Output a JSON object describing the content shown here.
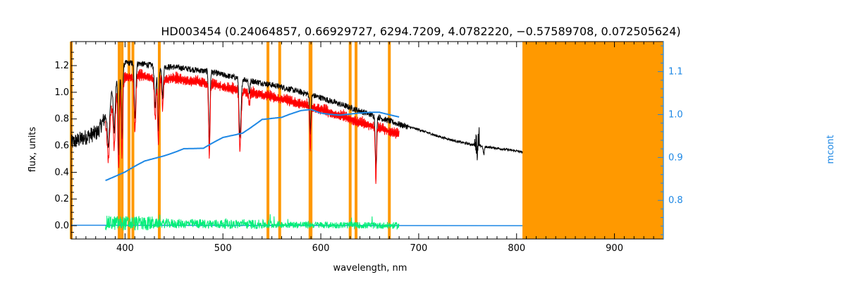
{
  "chart_data": {
    "type": "line",
    "title": "HD003454    (0.24064857, 0.66929727, 6294.7209, 4.0782220, −0.57589708, 0.072505624)",
    "xlabel": "wavelength, nm",
    "ylabel": "flux, units",
    "y2label": "mcont",
    "xlim": [
      345,
      950
    ],
    "ylim": [
      -0.1,
      1.38
    ],
    "y2lim": [
      0.71,
      1.17
    ],
    "xticks": [
      400,
      500,
      600,
      700,
      800,
      900
    ],
    "yticks": [
      0.0,
      0.2,
      0.4,
      0.6,
      0.8,
      1.0,
      1.2
    ],
    "y2ticks": [
      0.8,
      0.9,
      1.0,
      1.1
    ],
    "ytick_labels": [
      "0.0",
      "0.2",
      "0.4",
      "0.6",
      "0.8",
      "1.0",
      "1.2"
    ],
    "y2tick_labels": [
      "0.8",
      "0.9",
      "1.0",
      "1.1"
    ],
    "colors": {
      "observed": "#000000",
      "model": "#ff0000",
      "continuum": "#1e88e5",
      "residual": "#00ee77",
      "mask": "#ff9900",
      "right_axis": "#1e88e5"
    },
    "masked_lines_nm": [
      345,
      394,
      397,
      404,
      408,
      435,
      546,
      558,
      589,
      590,
      630,
      636,
      670
    ],
    "masked_region_nm": [
      806,
      950
    ],
    "series": [
      {
        "key": "observed",
        "x": [
          345,
          355,
          365,
          372,
          380,
          388,
          395,
          400,
          410,
          420,
          430,
          440,
          450,
          460,
          470,
          480,
          490,
          500,
          520,
          540,
          560,
          580,
          600,
          620,
          640,
          660,
          680,
          700,
          720,
          740,
          760,
          780,
          800,
          806
        ],
        "y": [
          0.62,
          0.65,
          0.68,
          0.7,
          0.82,
          1.05,
          1.15,
          1.22,
          1.22,
          1.21,
          1.2,
          1.19,
          1.19,
          1.18,
          1.17,
          1.16,
          1.15,
          1.13,
          1.1,
          1.07,
          1.04,
          1.0,
          0.96,
          0.91,
          0.86,
          0.81,
          0.76,
          0.72,
          0.67,
          0.63,
          0.6,
          0.58,
          0.56,
          0.55
        ]
      },
      {
        "key": "model",
        "x": [
          380,
          390,
          400,
          410,
          420,
          430,
          440,
          450,
          460,
          470,
          480,
          490,
          500,
          520,
          540,
          560,
          580,
          600,
          620,
          640,
          660,
          680
        ],
        "y": [
          0.8,
          1.02,
          1.17,
          1.18,
          1.18,
          1.17,
          1.16,
          1.16,
          1.15,
          1.14,
          1.13,
          1.12,
          1.1,
          1.07,
          1.04,
          1.01,
          0.97,
          0.93,
          0.88,
          0.83,
          0.79,
          0.74
        ]
      },
      {
        "key": "continuum",
        "axis": "right",
        "x": [
          380,
          400,
          420,
          440,
          460,
          480,
          500,
          520,
          540,
          560,
          580,
          590,
          600,
          620,
          640,
          660,
          680
        ],
        "y": [
          0.848,
          0.865,
          0.89,
          0.905,
          0.922,
          0.92,
          0.945,
          0.958,
          0.99,
          0.992,
          1.008,
          1.012,
          1.005,
          1.0,
          1.002,
          1.004,
          0.996
        ]
      },
      {
        "key": "residual",
        "x": [
          345,
          350,
          380,
          680,
          700,
          806
        ],
        "y": [
          0.01,
          0.005,
          0.02,
          0.0,
          0.0,
          0.0
        ]
      }
    ]
  }
}
